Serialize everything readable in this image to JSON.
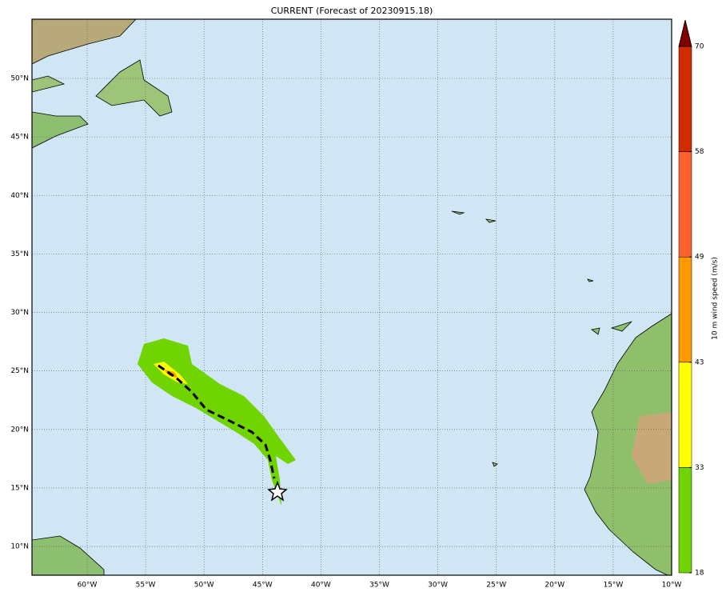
{
  "title": "CURRENT (Forecast of 20230915.18)",
  "map": {
    "lon_range": [
      -64.72,
      -10
    ],
    "lat_range": [
      7.54,
      55.06
    ],
    "lon_ticks": [
      {
        "value": -60,
        "label": "60°W"
      },
      {
        "value": -55,
        "label": "55°W"
      },
      {
        "value": -50,
        "label": "50°W"
      },
      {
        "value": -45,
        "label": "45°W"
      },
      {
        "value": -40,
        "label": "40°W"
      },
      {
        "value": -35,
        "label": "35°W"
      },
      {
        "value": -30,
        "label": "30°W"
      },
      {
        "value": -25,
        "label": "25°W"
      },
      {
        "value": -20,
        "label": "20°W"
      },
      {
        "value": -15,
        "label": "15°W"
      },
      {
        "value": -10,
        "label": "10°W"
      }
    ],
    "lat_ticks": [
      {
        "value": 10,
        "label": "10°N"
      },
      {
        "value": 15,
        "label": "15°N"
      },
      {
        "value": 20,
        "label": "20°N"
      },
      {
        "value": 25,
        "label": "25°N"
      },
      {
        "value": 30,
        "label": "30°N"
      },
      {
        "value": 35,
        "label": "35°N"
      },
      {
        "value": 40,
        "label": "40°N"
      },
      {
        "value": 45,
        "label": "45°N"
      },
      {
        "value": 50,
        "label": "50°N"
      }
    ]
  },
  "colorbar": {
    "label": "10 m wind speed (m/s)",
    "ticks": [
      18,
      33,
      43,
      49,
      58,
      70
    ],
    "colors": [
      "#6fd400",
      "#ffff00",
      "#ff9900",
      "#ff6030",
      "#d02c00"
    ],
    "extend_color": "#800000"
  }
}
